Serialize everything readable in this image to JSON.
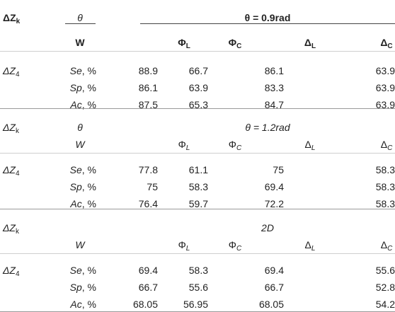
{
  "sections": [
    {
      "bold": true,
      "corner": {
        "main": "ΔZ",
        "sub": "k"
      },
      "param_label": "θ",
      "param_value": "θ = 0.9rad",
      "weight_label": "W",
      "columns": [
        {
          "main": "Φ",
          "sub": "L"
        },
        {
          "main": "Φ",
          "sub": "C"
        },
        {
          "main": "Δ",
          "sub": "L"
        },
        {
          "main": "Δ",
          "sub": "C"
        }
      ],
      "group": {
        "main": "ΔZ",
        "sub": "4"
      },
      "rows": [
        {
          "metric": "Se",
          "unit": ", %",
          "values": [
            "88.9",
            "66.7",
            "86.1",
            "63.9"
          ]
        },
        {
          "metric": "Sp",
          "unit": ", %",
          "values": [
            "86.1",
            "63.9",
            "83.3",
            "63.9"
          ]
        },
        {
          "metric": "Ac",
          "unit": ", %",
          "values": [
            "87.5",
            "65.3",
            "84.7",
            "63.9"
          ]
        }
      ]
    },
    {
      "bold": false,
      "corner": {
        "main": "ΔZ",
        "sub": "k"
      },
      "param_label": "θ",
      "param_value": "θ = 1.2rad",
      "weight_label": "W",
      "columns": [
        {
          "main": "Φ",
          "sub": "L"
        },
        {
          "main": "Φ",
          "sub": "C"
        },
        {
          "main": "Δ",
          "sub": "L"
        },
        {
          "main": "Δ",
          "sub": "C"
        }
      ],
      "group": {
        "main": "ΔZ",
        "sub": "4"
      },
      "rows": [
        {
          "metric": "Se",
          "unit": ", %",
          "values": [
            "77.8",
            "61.1",
            "75",
            "58.3"
          ]
        },
        {
          "metric": "Sp",
          "unit": ", %",
          "values": [
            "75",
            "58.3",
            "69.4",
            "58.3"
          ]
        },
        {
          "metric": "Ac",
          "unit": ", %",
          "values": [
            "76.4",
            "59.7",
            "72.2",
            "58.3"
          ]
        }
      ]
    },
    {
      "bold": false,
      "corner": {
        "main": "ΔZ",
        "sub": "k"
      },
      "param_label": "",
      "param_value": "2D",
      "weight_label": "W",
      "columns": [
        {
          "main": "Φ",
          "sub": "L"
        },
        {
          "main": "Φ",
          "sub": "C"
        },
        {
          "main": "Δ",
          "sub": "L"
        },
        {
          "main": "Δ",
          "sub": "C"
        }
      ],
      "group": {
        "main": "ΔZ",
        "sub": "4"
      },
      "rows": [
        {
          "metric": "Se",
          "unit": ", %",
          "values": [
            "69.4",
            "58.3",
            "69.4",
            "55.6"
          ]
        },
        {
          "metric": "Sp",
          "unit": ", %",
          "values": [
            "66.7",
            "55.6",
            "66.7",
            "52.8"
          ]
        },
        {
          "metric": "Ac",
          "unit": ", %",
          "values": [
            "68.05",
            "56.95",
            "68.05",
            "54.2"
          ]
        }
      ]
    }
  ]
}
